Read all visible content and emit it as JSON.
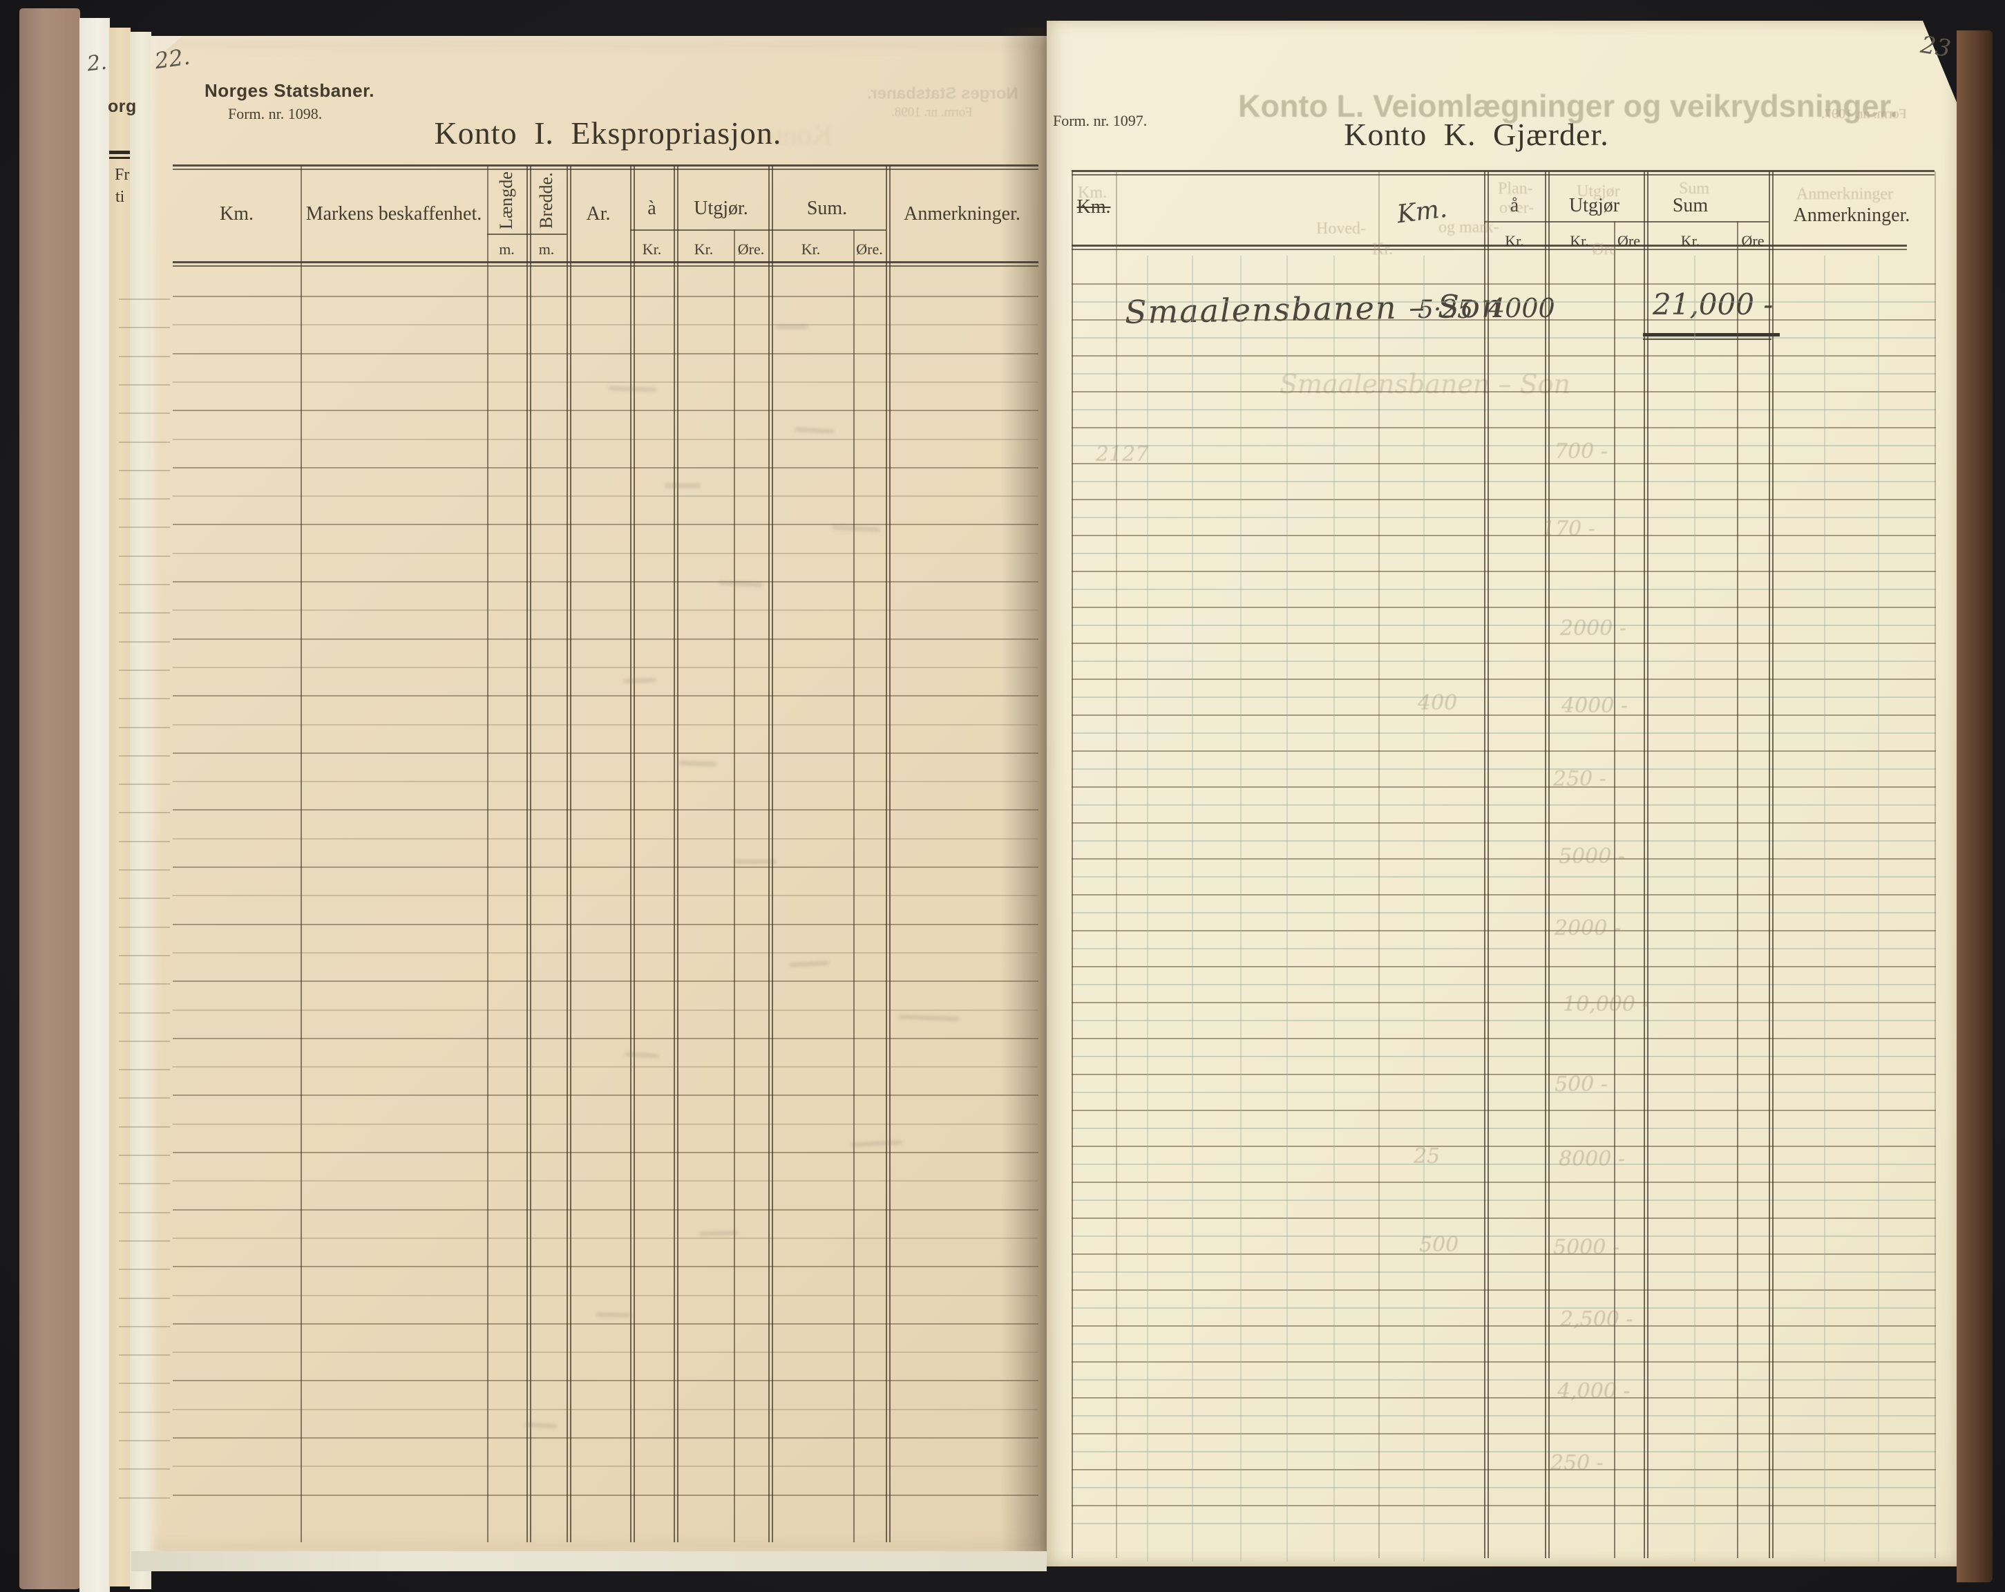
{
  "edge_fragments": {
    "underpage_number": "2.",
    "brand_fragment": "org",
    "row_fragment_1": "Fr",
    "row_fragment_2": "ti"
  },
  "left_page": {
    "page_number": "22.",
    "brand": "Norges Statsbaner.",
    "form_number": "Form. nr. 1098.",
    "title": "Konto I.  Ekspropriasjon.",
    "bleed": {
      "brand_mirrored": "Norges Statsbaner.",
      "form_mirrored": "Form. nr. 1098.",
      "title_ghost": "Konto"
    },
    "table": {
      "col_km": "Km.",
      "col_markens": "Markens beskaffenhet.",
      "col_laengde": "Længde",
      "col_bredde": "Bredde.",
      "col_ar": "Ar.",
      "col_a": "à",
      "col_utgjor": "Utgjør.",
      "col_sum": "Sum.",
      "col_anm": "Anmerkninger.",
      "sub_m_laengde": "m.",
      "sub_m_bredde": "m.",
      "sub_kr_a": "Kr.",
      "sub_kr_utgjor": "Kr.",
      "sub_ore_utgjor": "Øre.",
      "sub_kr_sum": "Kr.",
      "sub_ore_sum": "Øre."
    }
  },
  "right_page": {
    "page_number": "23",
    "form_number": "Form. nr. 1097.",
    "title": "Konto K.  Gjærder.",
    "bleed_title": "Konto L.  Veiomlægninger og veikrydsninger.",
    "bleed_form_mirrored": "Form. nr. 1097.",
    "table": {
      "col_km_struck": "Km.",
      "col_km_hand": "Km.",
      "col_a": "å",
      "col_utgjor": "Utgjør",
      "col_sum": "Sum",
      "col_anm": "Anmerkninger.",
      "sub_kr_a": "Kr.",
      "sub_kr_utgjor": "Kr.",
      "sub_ore_utgjor": "Øre",
      "sub_kr_sum": "Kr.",
      "sub_ore_sum": "Øre",
      "entry": {
        "name": "Smaalensbanen – Son",
        "km": "5·25",
        "rate": "4000",
        "sum_kr": "21,000 -"
      },
      "bleed_entry_name": "Smaalensbanen – Son",
      "bleed_fragments": [
        "Km.",
        "Plan-",
        "over-",
        "og mark-",
        "Hoved-",
        "Utgjør",
        "Sum",
        "Anmerkninger",
        "Kr.",
        "Øre"
      ],
      "bleed_values": [
        "2127",
        "700 -",
        "170 -",
        "2000 -",
        "400",
        "4000 -",
        "250 -",
        "5000 -",
        "2000 -",
        "10,000 -",
        "500 -",
        "25",
        "8000 -",
        "500",
        "5000 -",
        "2,500 -",
        "4,000 -",
        "250 -"
      ]
    }
  }
}
